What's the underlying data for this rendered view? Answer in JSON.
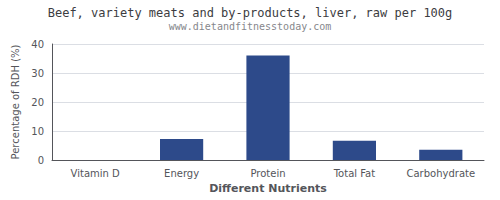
{
  "chart_data": {
    "type": "bar",
    "title": "Beef, variety meats and by-products, liver, raw per 100g",
    "subtitle": "www.dietandfitnesstoday.com",
    "xlabel": "Different Nutrients",
    "ylabel": "Percentage of RDH (%)",
    "categories": [
      "Vitamin D",
      "Energy",
      "Protein",
      "Total Fat",
      "Carbohydrate"
    ],
    "values": [
      0.0,
      7.2,
      36.0,
      6.6,
      3.5
    ],
    "color": "#2d4a8a",
    "ylim": [
      0,
      40
    ],
    "yticks": [
      0,
      10,
      20,
      30,
      40
    ],
    "grid": true
  }
}
